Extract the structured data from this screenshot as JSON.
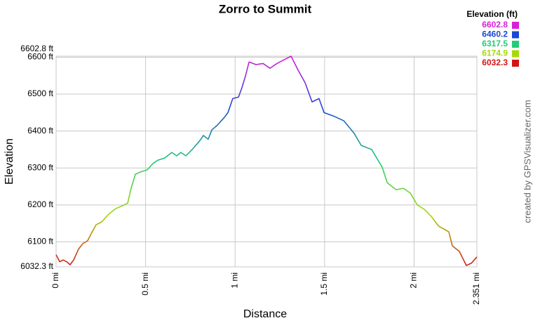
{
  "chart_data": {
    "type": "line",
    "title": "Zorro to Summit",
    "xlabel": "Distance",
    "ylabel": "Elevation",
    "annotation": "created by GPSVisualizer.com",
    "grid": true,
    "xlim": [
      0,
      2.351
    ],
    "ylim": [
      6032.3,
      6602.8
    ],
    "xticks": [
      {
        "value": 0,
        "label": "0 mi"
      },
      {
        "value": 0.5,
        "label": "0.5 mi"
      },
      {
        "value": 1,
        "label": "1 mi"
      },
      {
        "value": 1.5,
        "label": "1.5 mi"
      },
      {
        "value": 2,
        "label": "2 mi"
      },
      {
        "value": 2.351,
        "label": "2.351 mi"
      }
    ],
    "yticks": [
      {
        "value": 6032.3,
        "label": "6032.3 ft"
      },
      {
        "value": 6100,
        "label": "6100 ft"
      },
      {
        "value": 6200,
        "label": "6200 ft"
      },
      {
        "value": 6300,
        "label": "6300 ft"
      },
      {
        "value": 6400,
        "label": "6400 ft"
      },
      {
        "value": 6500,
        "label": "6500 ft"
      },
      {
        "value": 6600,
        "label": "6600 ft"
      },
      {
        "value": 6602.8,
        "label": "6602.8 ft"
      }
    ],
    "colorscale": {
      "title": "Elevation (ft)",
      "stops": [
        {
          "value": 6602.8,
          "color": "#d81fd8"
        },
        {
          "value": 6460.2,
          "color": "#1a47d6"
        },
        {
          "value": 6317.5,
          "color": "#22cc77"
        },
        {
          "value": 6174.9,
          "color": "#a8d80a"
        },
        {
          "value": 6032.3,
          "color": "#d41414"
        }
      ]
    },
    "x": [
      0,
      0.02,
      0.039,
      0.059,
      0.078,
      0.098,
      0.125,
      0.149,
      0.176,
      0.196,
      0.223,
      0.255,
      0.294,
      0.333,
      0.372,
      0.4,
      0.419,
      0.443,
      0.47,
      0.509,
      0.541,
      0.568,
      0.607,
      0.646,
      0.674,
      0.697,
      0.725,
      0.764,
      0.803,
      0.823,
      0.85,
      0.87,
      0.901,
      0.94,
      0.96,
      0.987,
      1.019,
      1.038,
      1.058,
      1.078,
      1.117,
      1.156,
      1.195,
      1.234,
      1.273,
      1.313,
      1.352,
      1.391,
      1.43,
      1.469,
      1.497,
      1.548,
      1.607,
      1.665,
      1.705,
      1.763,
      1.822,
      1.85,
      1.9,
      1.94,
      1.979,
      2.018,
      2.057,
      2.096,
      2.136,
      2.194,
      2.214,
      2.253,
      2.292,
      2.32,
      2.351
    ],
    "values": [
      6065,
      6046,
      6051,
      6046,
      6038,
      6051,
      6080,
      6095,
      6103,
      6122,
      6146,
      6154,
      6175,
      6190,
      6198,
      6205,
      6245,
      6283,
      6289,
      6295,
      6312,
      6321,
      6327,
      6342,
      6333,
      6342,
      6333,
      6352,
      6374,
      6388,
      6378,
      6403,
      6416,
      6437,
      6450,
      6488,
      6492,
      6517,
      6549,
      6587,
      6580,
      6583,
      6570,
      6583,
      6593,
      6602.8,
      6565,
      6531,
      6479,
      6488,
      6450,
      6441,
      6428,
      6394,
      6361,
      6350,
      6302,
      6260,
      6241,
      6245,
      6232,
      6200,
      6188,
      6169,
      6143,
      6127,
      6089,
      6074,
      6036,
      6042,
      6059
    ]
  }
}
